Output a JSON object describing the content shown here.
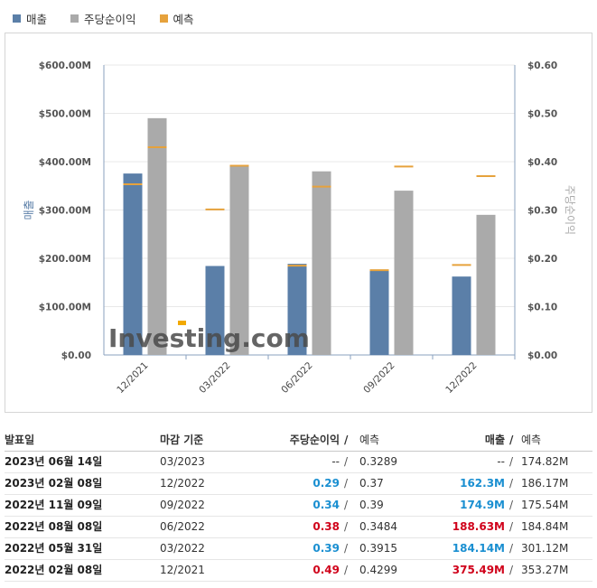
{
  "legend": [
    {
      "label": "매출",
      "color": "#5b7fa8"
    },
    {
      "label": "주당순이익",
      "color": "#aaaaaa"
    },
    {
      "label": "예측",
      "color": "#e6a23c"
    }
  ],
  "chart_data": {
    "type": "bar",
    "categories": [
      "12/2021",
      "03/2022",
      "06/2022",
      "09/2022",
      "12/2022"
    ],
    "series": [
      {
        "name": "매출",
        "axis": "left",
        "color": "#5b7fa8",
        "values": [
          375.49,
          184.14,
          188.63,
          174.9,
          162.3
        ],
        "forecast": [
          353.27,
          301.12,
          184.84,
          175.54,
          186.17
        ]
      },
      {
        "name": "주당순이익",
        "axis": "right",
        "color": "#aaaaaa",
        "values": [
          0.49,
          0.39,
          0.38,
          0.34,
          0.29
        ],
        "forecast": [
          0.4299,
          0.3915,
          0.3484,
          0.39,
          0.37
        ]
      }
    ],
    "forecast_color": "#e6a23c",
    "ylabel_left": "매출",
    "ylabel_right": "주당순이익",
    "ylim_left": [
      0,
      600
    ],
    "ylim_right": [
      0,
      0.6
    ],
    "yticks_left": [
      "$0.00",
      "$100.00M",
      "$200.00M",
      "$300.00M",
      "$400.00M",
      "$500.00M",
      "$600.00M"
    ],
    "yticks_right": [
      "$0.00",
      "$0.10",
      "$0.20",
      "$0.30",
      "$0.40",
      "$0.50",
      "$0.60"
    ],
    "grid": true,
    "watermark": "Investing.com"
  },
  "table": {
    "headers": {
      "date": "발표일",
      "period": "마감 기준",
      "eps": "주당순이익",
      "eps_forecast": "예측",
      "revenue": "매출",
      "revenue_forecast": "예측",
      "slash": "/"
    },
    "rows": [
      {
        "date": "2023년 06월 14일",
        "period": "03/2023",
        "eps": "--",
        "eps_class": "neutral",
        "eps_forecast": "0.3289",
        "revenue": "--",
        "revenue_class": "neutral",
        "revenue_forecast": "174.82M"
      },
      {
        "date": "2023년 02월 08일",
        "period": "12/2022",
        "eps": "0.29",
        "eps_class": "pos",
        "eps_forecast": "0.37",
        "revenue": "162.3M",
        "revenue_class": "pos",
        "revenue_forecast": "186.17M"
      },
      {
        "date": "2022년 11월 09일",
        "period": "09/2022",
        "eps": "0.34",
        "eps_class": "pos",
        "eps_forecast": "0.39",
        "revenue": "174.9M",
        "revenue_class": "pos",
        "revenue_forecast": "175.54M"
      },
      {
        "date": "2022년 08월 08일",
        "period": "06/2022",
        "eps": "0.38",
        "eps_class": "neg",
        "eps_forecast": "0.3484",
        "revenue": "188.63M",
        "revenue_class": "neg",
        "revenue_forecast": "184.84M"
      },
      {
        "date": "2022년 05월 31일",
        "period": "03/2022",
        "eps": "0.39",
        "eps_class": "pos",
        "eps_forecast": "0.3915",
        "revenue": "184.14M",
        "revenue_class": "pos",
        "revenue_forecast": "301.12M"
      },
      {
        "date": "2022년 02월 08일",
        "period": "12/2021",
        "eps": "0.49",
        "eps_class": "neg",
        "eps_forecast": "0.4299",
        "revenue": "375.49M",
        "revenue_class": "neg",
        "revenue_forecast": "353.27M"
      }
    ]
  }
}
